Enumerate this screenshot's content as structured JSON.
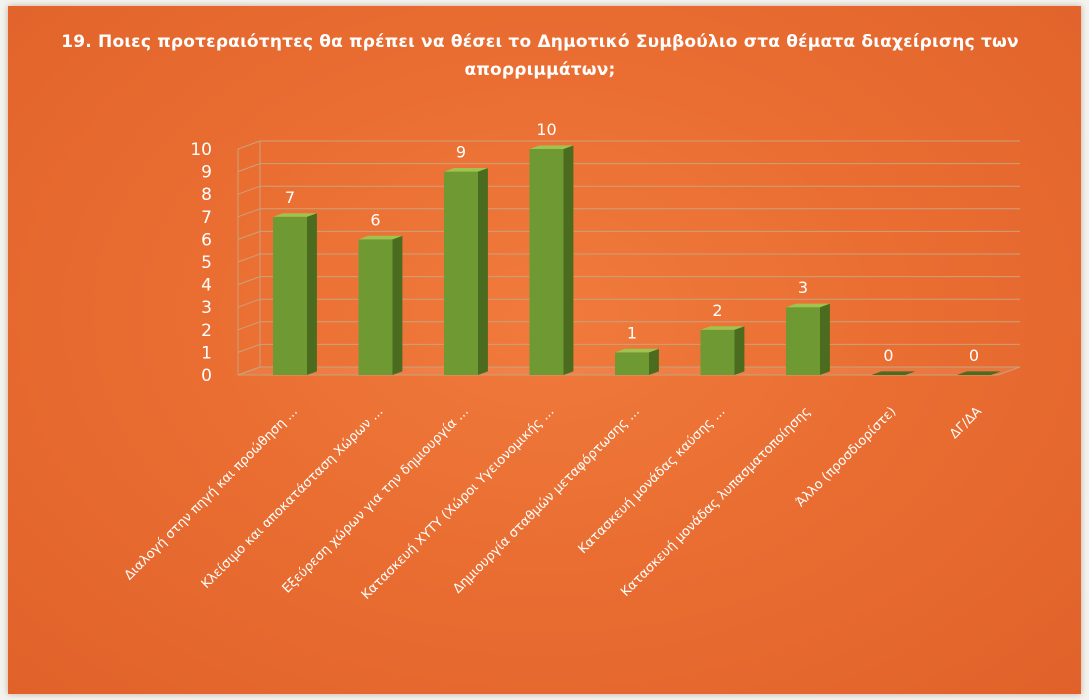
{
  "chart_data": {
    "type": "bar",
    "title": "19. Ποιες προτεραιότητες θα πρέπει να θέσει το Δημοτικό Συμβούλιο στα θέματα διαχείρισης των απορριμμάτων;",
    "categories": [
      "Διαλογή στην πηγή και προώθηση ...",
      "Κλείσιμο και αποκατάσταση Χώρων ...",
      "Εξεύρεση χώρων για την δημιουργία ...",
      "Κατασκευή ΧΥΤΥ (Χώροι Υγειονομικής ...",
      "Δημιουργία σταθμών μεταφόρτωσης ...",
      "Κατασκευή μονάδας καύσης ...",
      "Κατασκευή μονάδας λυπασματοποίησης",
      "Άλλο (προσδιορίστε)",
      "ΔΓ/ΔΑ"
    ],
    "values": [
      7,
      6,
      9,
      10,
      1,
      2,
      3,
      0,
      0
    ],
    "ylim": [
      0,
      10
    ],
    "yticks": [
      "0",
      "1",
      "2",
      "3",
      "4",
      "5",
      "6",
      "7",
      "8",
      "9",
      "10"
    ],
    "grid": true,
    "legend": "none",
    "colors": {
      "bar_front": "#6f9a33",
      "bar_side": "#4b6c1e",
      "bar_top": "#9cc44f",
      "gridline": "#c9a27a",
      "text": "#ffffff"
    }
  }
}
